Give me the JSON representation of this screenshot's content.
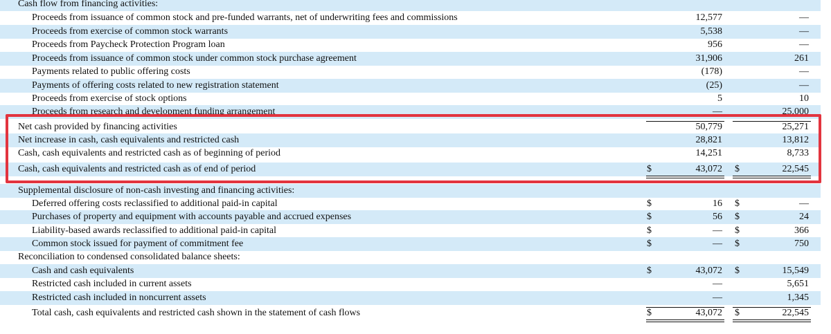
{
  "table": {
    "rows": [
      {
        "label": "Cash flow from financing activities:"
      },
      {
        "label": "Proceeds from issuance of common stock and pre-funded warrants, net of underwriting fees and commissions",
        "value_1": "12,577",
        "value_2": "—"
      },
      {
        "label": "Proceeds from exercise of common stock warrants",
        "value_1": "5,538",
        "value_2": "—"
      },
      {
        "label": "Proceeds from Paycheck Protection Program loan",
        "value_1": "956",
        "value_2": "—"
      },
      {
        "label": "Proceeds from issuance of common stock under common stock purchase agreement",
        "value_1": "31,906",
        "value_2": "261"
      },
      {
        "label": "Payments related to public offering costs",
        "value_1": "(178)",
        "value_2": "—"
      },
      {
        "label": "Payments of offering costs related to new registration statement",
        "value_1": "(25)",
        "value_2": "—"
      },
      {
        "label": "Proceeds from exercise of stock options",
        "value_1": "5",
        "value_2": "10"
      },
      {
        "label": "Proceeds from research and development funding arrangement",
        "value_1": "—",
        "value_2": "25,000"
      },
      {
        "label": "Net cash provided by financing activities",
        "value_1": "50,779",
        "value_2": "25,271"
      },
      {
        "label": "Net increase in cash, cash equivalents and restricted cash",
        "value_1": "28,821",
        "value_2": "13,812"
      },
      {
        "label": "Cash, cash equivalents and restricted cash as of beginning of period",
        "value_1": "14,251",
        "value_2": "8,733"
      },
      {
        "label": "Cash, cash equivalents and restricted cash as of end of period",
        "sign_1": "$",
        "value_1": "43,072",
        "sign_2": "$",
        "value_2": "22,545"
      },
      {
        "label": "Supplemental disclosure of non-cash investing and financing activities:"
      },
      {
        "label": "Deferred offering costs reclassified to additional paid-in capital",
        "sign_1": "$",
        "value_1": "16",
        "sign_2": "$",
        "value_2": "—"
      },
      {
        "label": "Purchases of property and equipment with accounts payable and accrued expenses",
        "sign_1": "$",
        "value_1": "56",
        "sign_2": "$",
        "value_2": "24"
      },
      {
        "label": "Liability-based awards reclassified to additional paid-in capital",
        "sign_1": "$",
        "value_1": "—",
        "sign_2": "$",
        "value_2": "366"
      },
      {
        "label": "Common stock issued for payment of commitment fee",
        "sign_1": "$",
        "value_1": "—",
        "sign_2": "$",
        "value_2": "750"
      },
      {
        "label": "Reconciliation to condensed consolidated balance sheets:"
      },
      {
        "label": "Cash and cash equivalents",
        "sign_1": "$",
        "value_1": "43,072",
        "sign_2": "$",
        "value_2": "15,549"
      },
      {
        "label": "Restricted cash included in current assets",
        "value_1": "—",
        "value_2": "5,651"
      },
      {
        "label": "Restricted cash included in noncurrent assets",
        "value_1": "—",
        "value_2": "1,345"
      },
      {
        "label": "Total cash, cash equivalents and restricted cash shown in the statement of cash flows",
        "sign_1": "$",
        "value_1": "43,072",
        "sign_2": "$",
        "value_2": "22,545"
      }
    ]
  }
}
